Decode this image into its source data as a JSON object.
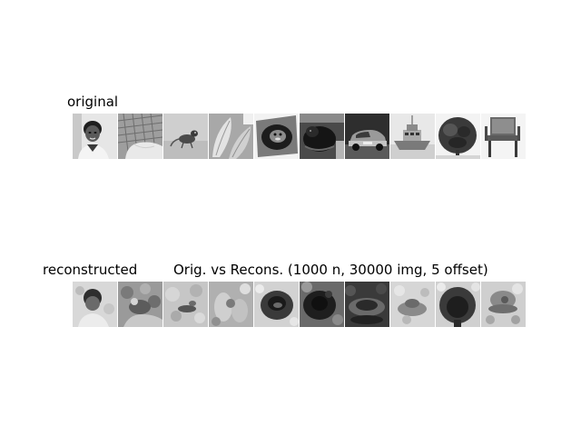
{
  "figure": {
    "original_label": "original",
    "reconstructed_label": "reconstructed",
    "title": "Orig. vs Recons. (1000 n, 30000 img, 5 offset)"
  },
  "original_images": [
    {
      "subject": "person-portrait"
    },
    {
      "subject": "hand-on-keyboard"
    },
    {
      "subject": "small-animal"
    },
    {
      "subject": "leaves"
    },
    {
      "subject": "animal-in-bowl"
    },
    {
      "subject": "dark-animal"
    },
    {
      "subject": "car"
    },
    {
      "subject": "boat"
    },
    {
      "subject": "tree"
    },
    {
      "subject": "chair"
    }
  ],
  "reconstructed_images": [
    {
      "subject": "person-portrait"
    },
    {
      "subject": "hand-on-keyboard"
    },
    {
      "subject": "small-animal"
    },
    {
      "subject": "leaves"
    },
    {
      "subject": "animal-in-bowl"
    },
    {
      "subject": "dark-animal"
    },
    {
      "subject": "car"
    },
    {
      "subject": "boat"
    },
    {
      "subject": "tree"
    },
    {
      "subject": "chair"
    }
  ]
}
